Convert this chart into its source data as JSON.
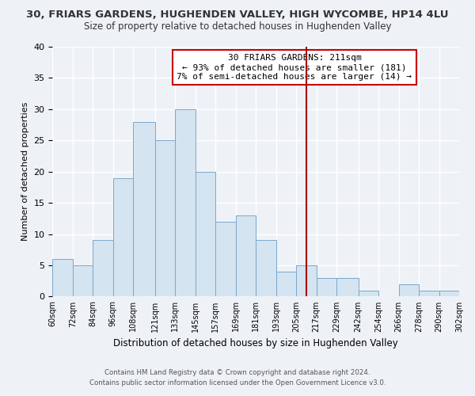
{
  "title": "30, FRIARS GARDENS, HUGHENDEN VALLEY, HIGH WYCOMBE, HP14 4LU",
  "subtitle": "Size of property relative to detached houses in Hughenden Valley",
  "xlabel": "Distribution of detached houses by size in Hughenden Valley",
  "ylabel": "Number of detached properties",
  "bar_color": "#d4e4f0",
  "bar_edgecolor": "#7aa8cc",
  "bin_edges": [
    60,
    72,
    84,
    96,
    108,
    121,
    133,
    145,
    157,
    169,
    181,
    193,
    205,
    217,
    229,
    242,
    254,
    266,
    278,
    290,
    302
  ],
  "bin_labels": [
    "60sqm",
    "72sqm",
    "84sqm",
    "96sqm",
    "108sqm",
    "121sqm",
    "133sqm",
    "145sqm",
    "157sqm",
    "169sqm",
    "181sqm",
    "193sqm",
    "205sqm",
    "217sqm",
    "229sqm",
    "242sqm",
    "254sqm",
    "266sqm",
    "278sqm",
    "290sqm",
    "302sqm"
  ],
  "counts": [
    6,
    5,
    9,
    19,
    28,
    25,
    30,
    20,
    12,
    13,
    9,
    4,
    5,
    3,
    3,
    1,
    0,
    2,
    1,
    1
  ],
  "property_size": 211,
  "vline_color": "#aa0000",
  "annotation_line1": "30 FRIARS GARDENS: 211sqm",
  "annotation_line2": "← 93% of detached houses are smaller (181)",
  "annotation_line3": "7% of semi-detached houses are larger (14) →",
  "annotation_box_color": "#ffffff",
  "annotation_border_color": "#cc0000",
  "ylim": [
    0,
    40
  ],
  "yticks": [
    0,
    5,
    10,
    15,
    20,
    25,
    30,
    35,
    40
  ],
  "footer_line1": "Contains HM Land Registry data © Crown copyright and database right 2024.",
  "footer_line2": "Contains public sector information licensed under the Open Government Licence v3.0.",
  "background_color": "#eef2f7",
  "grid_color": "#ffffff"
}
